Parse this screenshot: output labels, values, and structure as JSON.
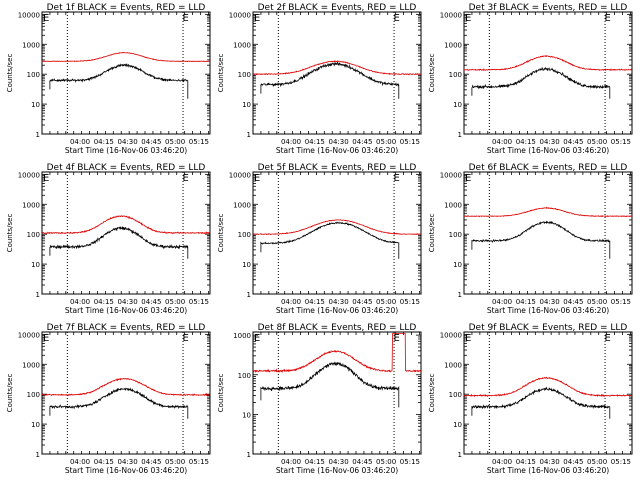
{
  "colors": {
    "events": "#000000",
    "lld": "#dd0000",
    "axis": "#000000",
    "background": "#ffffff"
  },
  "chart_data": [
    {
      "type": "line",
      "title": "Det 1f BLACK = Events, RED = LLD",
      "xlabel": "Start Time (16-Nov-06 03:46:20)",
      "ylabel": "Counts/sec",
      "yscale": "log",
      "ylim": [
        1,
        12000
      ],
      "xlim_minutes": [
        -10,
        96
      ],
      "xticks": [
        {
          "t": 14,
          "label": "04:00"
        },
        {
          "t": 29,
          "label": "04:15"
        },
        {
          "t": 44,
          "label": "04:30"
        },
        {
          "t": 59,
          "label": "04:45"
        },
        {
          "t": 74,
          "label": "05:00"
        },
        {
          "t": 89,
          "label": "05:15"
        }
      ],
      "yticks": [
        {
          "v": 1,
          "label": "1"
        },
        {
          "v": 10,
          "label": "10"
        },
        {
          "v": 100,
          "label": "100"
        },
        {
          "v": 1000,
          "label": "1000"
        },
        {
          "v": 10000,
          "label": "10000"
        }
      ],
      "vlines": [
        6,
        79
      ],
      "markers": [
        {
          "t": -10,
          "label": "E"
        },
        {
          "t": 78,
          "label": "E"
        }
      ],
      "series": [
        {
          "t0": -10,
          "t1": 96,
          "base": 270,
          "peak": 520,
          "center": 42,
          "width": 14,
          "noise": 0.03
        },
        {
          "t0": -5,
          "t1": 82,
          "base": 62,
          "peak": 200,
          "center": 42,
          "width": 13,
          "noise": 0.12,
          "tailDrop": 15
        }
      ]
    },
    {
      "type": "line",
      "title": "Det 2f BLACK = Events, RED = LLD",
      "xlabel": "Start Time (16-Nov-06 03:46:20)",
      "ylabel": "Counts/sec",
      "yscale": "log",
      "ylim": [
        1,
        12000
      ],
      "xlim_minutes": [
        -10,
        96
      ],
      "xticks": [
        {
          "t": 14,
          "label": "04:00"
        },
        {
          "t": 29,
          "label": "04:15"
        },
        {
          "t": 44,
          "label": "04:30"
        },
        {
          "t": 59,
          "label": "04:45"
        },
        {
          "t": 74,
          "label": "05:00"
        },
        {
          "t": 89,
          "label": "05:15"
        }
      ],
      "yticks": [
        {
          "v": 1,
          "label": "1"
        },
        {
          "v": 10,
          "label": "10"
        },
        {
          "v": 100,
          "label": "100"
        },
        {
          "v": 1000,
          "label": "1000"
        },
        {
          "v": 10000,
          "label": "10000"
        }
      ],
      "vlines": [
        6,
        79
      ],
      "markers": [
        {
          "t": -10,
          "label": "E"
        },
        {
          "t": 78,
          "label": "E"
        }
      ],
      "series": [
        {
          "t0": -10,
          "t1": 96,
          "base": 100,
          "peak": 270,
          "center": 42,
          "width": 17,
          "noise": 0.05
        },
        {
          "t0": -5,
          "t1": 82,
          "base": 45,
          "peak": 220,
          "center": 42,
          "width": 16,
          "noise": 0.15,
          "tailDrop": 15
        }
      ]
    },
    {
      "type": "line",
      "title": "Det 3f BLACK = Events, RED = LLD",
      "xlabel": "Start Time (16-Nov-06 03:46:20)",
      "ylabel": "Counts/sec",
      "yscale": "log",
      "ylim": [
        1,
        12000
      ],
      "xlim_minutes": [
        -10,
        96
      ],
      "xticks": [
        {
          "t": 14,
          "label": "04:00"
        },
        {
          "t": 29,
          "label": "04:15"
        },
        {
          "t": 44,
          "label": "04:30"
        },
        {
          "t": 59,
          "label": "04:45"
        },
        {
          "t": 74,
          "label": "05:00"
        },
        {
          "t": 89,
          "label": "05:15"
        }
      ],
      "yticks": [
        {
          "v": 1,
          "label": "1"
        },
        {
          "v": 10,
          "label": "10"
        },
        {
          "v": 100,
          "label": "100"
        },
        {
          "v": 1000,
          "label": "1000"
        },
        {
          "v": 10000,
          "label": "10000"
        }
      ],
      "vlines": [
        6,
        79
      ],
      "markers": [
        {
          "t": -10,
          "label": "E"
        },
        {
          "t": 78,
          "label": "E"
        }
      ],
      "series": [
        {
          "t0": -10,
          "t1": 96,
          "base": 140,
          "peak": 400,
          "center": 42,
          "width": 14,
          "noise": 0.06
        },
        {
          "t0": -5,
          "t1": 82,
          "base": 38,
          "peak": 150,
          "center": 42,
          "width": 13,
          "noise": 0.15,
          "tailDrop": 15
        }
      ]
    },
    {
      "type": "line",
      "title": "Det 4f BLACK = Events, RED = LLD",
      "xlabel": "Start Time (16-Nov-06 03:46:20)",
      "ylabel": "Counts/sec",
      "yscale": "log",
      "ylim": [
        1,
        12000
      ],
      "xlim_minutes": [
        -10,
        96
      ],
      "xticks": [
        {
          "t": 14,
          "label": "04:00"
        },
        {
          "t": 29,
          "label": "04:15"
        },
        {
          "t": 44,
          "label": "04:30"
        },
        {
          "t": 59,
          "label": "04:45"
        },
        {
          "t": 74,
          "label": "05:00"
        },
        {
          "t": 89,
          "label": "05:15"
        }
      ],
      "yticks": [
        {
          "v": 1,
          "label": "1"
        },
        {
          "v": 10,
          "label": "10"
        },
        {
          "v": 100,
          "label": "100"
        },
        {
          "v": 1000,
          "label": "1000"
        },
        {
          "v": 10000,
          "label": "10000"
        }
      ],
      "vlines": [
        6,
        79
      ],
      "markers": [
        {
          "t": -10,
          "label": "E"
        },
        {
          "t": 78,
          "label": "E"
        }
      ],
      "series": [
        {
          "t0": -10,
          "t1": 96,
          "base": 110,
          "peak": 400,
          "center": 40,
          "width": 13,
          "noise": 0.07
        },
        {
          "t0": -5,
          "t1": 82,
          "base": 38,
          "peak": 160,
          "center": 40,
          "width": 12,
          "noise": 0.15,
          "tailDrop": 15
        }
      ]
    },
    {
      "type": "line",
      "title": "Det 5f BLACK = Events, RED = LLD",
      "xlabel": "Start Time (16-Nov-06 03:46:20)",
      "ylabel": "Counts/sec",
      "yscale": "log",
      "ylim": [
        1,
        12000
      ],
      "xlim_minutes": [
        -10,
        96
      ],
      "xticks": [
        {
          "t": 14,
          "label": "04:00"
        },
        {
          "t": 29,
          "label": "04:15"
        },
        {
          "t": 44,
          "label": "04:30"
        },
        {
          "t": 59,
          "label": "04:45"
        },
        {
          "t": 74,
          "label": "05:00"
        },
        {
          "t": 89,
          "label": "05:15"
        }
      ],
      "yticks": [
        {
          "v": 1,
          "label": "1"
        },
        {
          "v": 10,
          "label": "10"
        },
        {
          "v": 100,
          "label": "100"
        },
        {
          "v": 1000,
          "label": "1000"
        },
        {
          "v": 10000,
          "label": "10000"
        }
      ],
      "vlines": [
        6,
        79
      ],
      "markers": [
        {
          "t": -10,
          "label": "E"
        },
        {
          "t": 78,
          "label": "E"
        }
      ],
      "series": [
        {
          "t0": -10,
          "t1": 96,
          "base": 100,
          "peak": 300,
          "center": 44,
          "width": 18,
          "noise": 0.04
        },
        {
          "t0": -5,
          "t1": 82,
          "base": 50,
          "peak": 240,
          "center": 44,
          "width": 17,
          "noise": 0.08,
          "tailDrop": 15
        }
      ]
    },
    {
      "type": "line",
      "title": "Det 6f BLACK = Events, RED = LLD",
      "xlabel": "Start Time (16-Nov-06 03:46:20)",
      "ylabel": "Counts/sec",
      "yscale": "log",
      "ylim": [
        1,
        12000
      ],
      "xlim_minutes": [
        -10,
        96
      ],
      "xticks": [
        {
          "t": 14,
          "label": "04:00"
        },
        {
          "t": 29,
          "label": "04:15"
        },
        {
          "t": 44,
          "label": "04:30"
        },
        {
          "t": 59,
          "label": "04:45"
        },
        {
          "t": 74,
          "label": "05:00"
        },
        {
          "t": 89,
          "label": "05:15"
        }
      ],
      "yticks": [
        {
          "v": 1,
          "label": "1"
        },
        {
          "v": 10,
          "label": "10"
        },
        {
          "v": 100,
          "label": "100"
        },
        {
          "v": 1000,
          "label": "1000"
        },
        {
          "v": 10000,
          "label": "10000"
        }
      ],
      "vlines": [
        6,
        79
      ],
      "markers": [
        {
          "t": -10,
          "label": "E"
        },
        {
          "t": 78,
          "label": "E"
        }
      ],
      "series": [
        {
          "t0": -10,
          "t1": 96,
          "base": 400,
          "peak": 750,
          "center": 42,
          "width": 14,
          "noise": 0.04
        },
        {
          "t0": -5,
          "t1": 82,
          "base": 60,
          "peak": 250,
          "center": 42,
          "width": 13,
          "noise": 0.1,
          "tailDrop": 15
        }
      ]
    },
    {
      "type": "line",
      "title": "Det 7f BLACK = Events, RED = LLD",
      "xlabel": "Start Time (16-Nov-06 03:46:20)",
      "ylabel": "Counts/sec",
      "yscale": "log",
      "ylim": [
        1,
        12000
      ],
      "xlim_minutes": [
        -10,
        96
      ],
      "xticks": [
        {
          "t": 14,
          "label": "04:00"
        },
        {
          "t": 29,
          "label": "04:15"
        },
        {
          "t": 44,
          "label": "04:30"
        },
        {
          "t": 59,
          "label": "04:45"
        },
        {
          "t": 74,
          "label": "05:00"
        },
        {
          "t": 89,
          "label": "05:15"
        }
      ],
      "yticks": [
        {
          "v": 1,
          "label": "1"
        },
        {
          "v": 10,
          "label": "10"
        },
        {
          "v": 100,
          "label": "100"
        },
        {
          "v": 1000,
          "label": "1000"
        },
        {
          "v": 10000,
          "label": "10000"
        }
      ],
      "vlines": [
        6,
        79
      ],
      "markers": [
        {
          "t": -10,
          "label": "E"
        },
        {
          "t": 78,
          "label": "E"
        }
      ],
      "series": [
        {
          "t0": -10,
          "t1": 96,
          "base": 95,
          "peak": 330,
          "center": 42,
          "width": 14,
          "noise": 0.07
        },
        {
          "t0": -5,
          "t1": 82,
          "base": 38,
          "peak": 150,
          "center": 42,
          "width": 13,
          "noise": 0.15,
          "tailDrop": 15
        }
      ]
    },
    {
      "type": "line",
      "title": "Det 8f BLACK = Events, RED = LLD",
      "xlabel": "Start Time (16-Nov-06 03:46:20)",
      "ylabel": "Counts/sec",
      "yscale": "log",
      "ylim": [
        1,
        1200
      ],
      "xlim_minutes": [
        -10,
        96
      ],
      "xticks": [
        {
          "t": 14,
          "label": "04:00"
        },
        {
          "t": 29,
          "label": "04:15"
        },
        {
          "t": 44,
          "label": "04:30"
        },
        {
          "t": 59,
          "label": "04:45"
        },
        {
          "t": 74,
          "label": "05:00"
        },
        {
          "t": 89,
          "label": "05:15"
        }
      ],
      "yticks": [
        {
          "v": 1,
          "label": "1"
        },
        {
          "v": 10,
          "label": "10"
        },
        {
          "v": 100,
          "label": "100"
        },
        {
          "v": 1000,
          "label": "1000"
        }
      ],
      "vlines": [
        6,
        79
      ],
      "markers": [
        {
          "t": -10,
          "label": "E"
        },
        {
          "t": 78,
          "label": "E"
        }
      ],
      "series": [
        {
          "t0": -10,
          "t1": 96,
          "base": 125,
          "peak": 390,
          "center": 42,
          "width": 14,
          "noise": 0.07,
          "spike": [
            78,
            86,
            1100
          ]
        },
        {
          "t0": -5,
          "t1": 82,
          "base": 45,
          "peak": 190,
          "center": 42,
          "width": 13,
          "noise": 0.15,
          "tailDrop": 15
        }
      ]
    },
    {
      "type": "line",
      "title": "Det 9f BLACK = Events, RED = LLD",
      "xlabel": "Start Time (16-Nov-06 03:46:20)",
      "ylabel": "Counts/sec",
      "yscale": "log",
      "ylim": [
        1,
        12000
      ],
      "xlim_minutes": [
        -10,
        96
      ],
      "xticks": [
        {
          "t": 14,
          "label": "04:00"
        },
        {
          "t": 29,
          "label": "04:15"
        },
        {
          "t": 44,
          "label": "04:30"
        },
        {
          "t": 59,
          "label": "04:45"
        },
        {
          "t": 74,
          "label": "05:00"
        },
        {
          "t": 89,
          "label": "05:15"
        }
      ],
      "yticks": [
        {
          "v": 1,
          "label": "1"
        },
        {
          "v": 10,
          "label": "10"
        },
        {
          "v": 100,
          "label": "100"
        },
        {
          "v": 1000,
          "label": "1000"
        },
        {
          "v": 10000,
          "label": "10000"
        }
      ],
      "vlines": [
        6,
        79
      ],
      "markers": [
        {
          "t": -10,
          "label": "E"
        },
        {
          "t": 78,
          "label": "E"
        }
      ],
      "series": [
        {
          "t0": -10,
          "t1": 96,
          "base": 90,
          "peak": 350,
          "center": 42,
          "width": 14,
          "noise": 0.07
        },
        {
          "t0": -5,
          "t1": 82,
          "base": 38,
          "peak": 150,
          "center": 42,
          "width": 13,
          "noise": 0.15,
          "tailDrop": 15
        }
      ]
    }
  ]
}
